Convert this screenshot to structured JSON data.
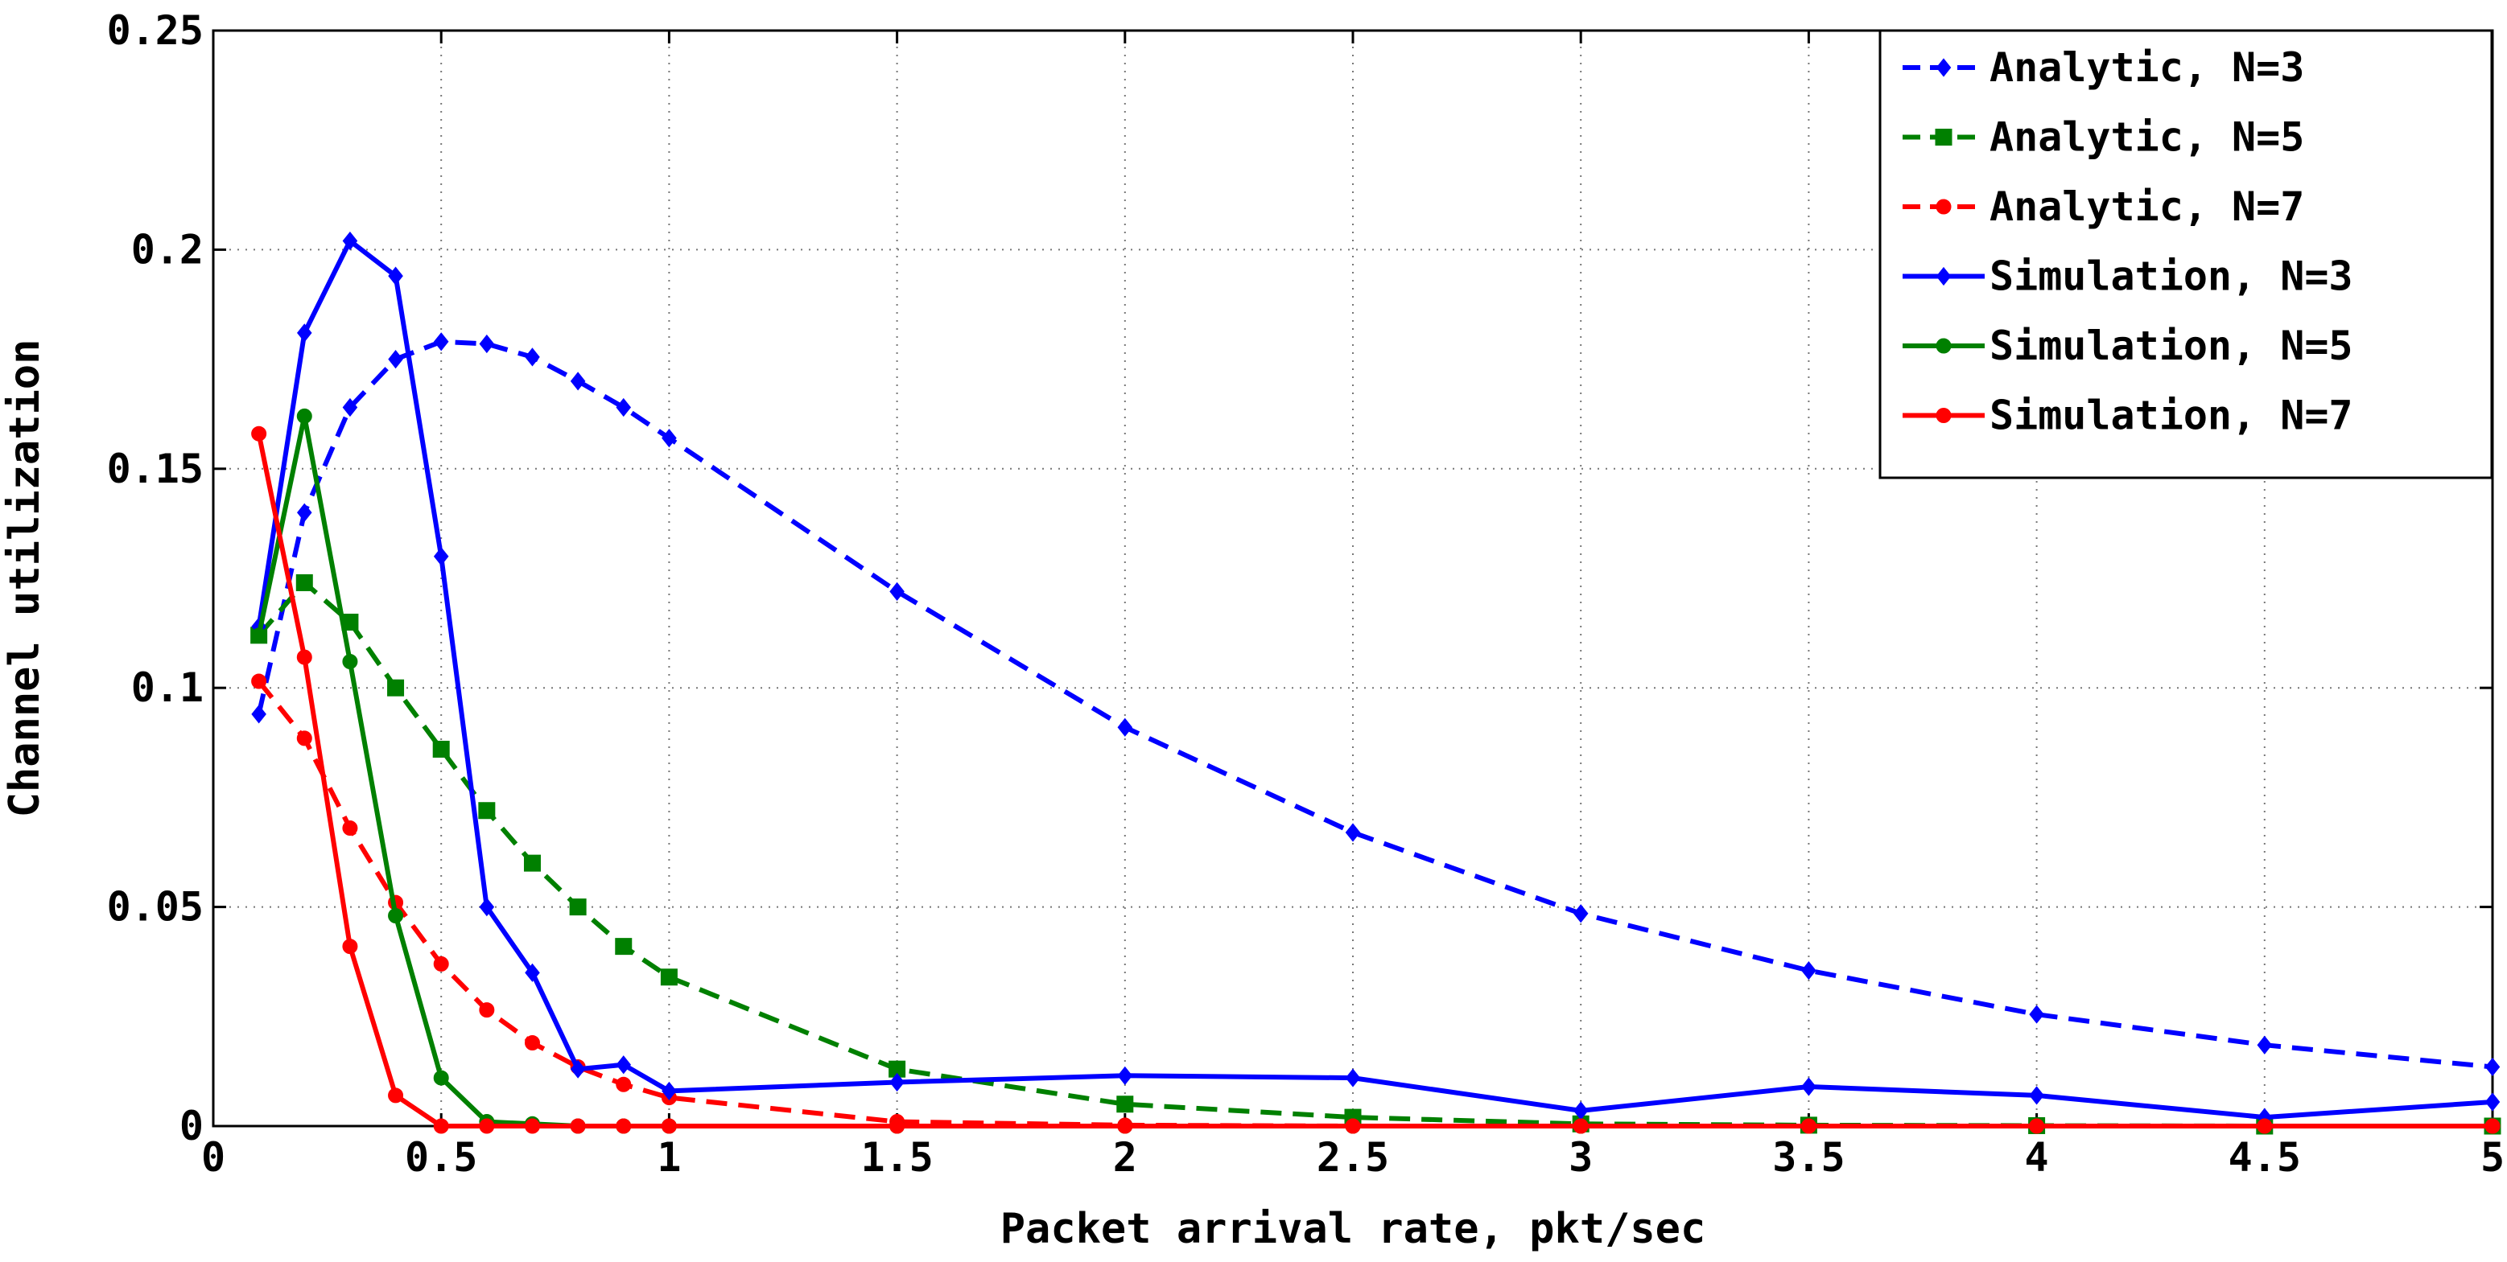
{
  "chart_data": {
    "type": "line",
    "title": "",
    "xlabel": "Packet arrival rate, pkt/sec",
    "ylabel": "Channel utilization",
    "xlim": [
      0,
      5
    ],
    "ylim": [
      0,
      0.25
    ],
    "xticks": [
      "0",
      "0.5",
      "1",
      "1.5",
      "2",
      "2.5",
      "3",
      "3.5",
      "4",
      "4.5",
      "5"
    ],
    "xtick_values": [
      0,
      0.5,
      1,
      1.5,
      2,
      2.5,
      3,
      3.5,
      4,
      4.5,
      5
    ],
    "yticks": [
      "0",
      "0.05",
      "0.1",
      "0.15",
      "0.2",
      "0.25"
    ],
    "ytick_values": [
      0,
      0.05,
      0.1,
      0.15,
      0.2,
      0.25
    ],
    "grid": true,
    "legend_position": "top-right",
    "series": [
      {
        "name": "Analytic, N=3",
        "color": "#0000ff",
        "style": "dashed",
        "marker": "diamond",
        "x": [
          0.1,
          0.2,
          0.3,
          0.4,
          0.5,
          0.6,
          0.7,
          0.8,
          0.9,
          1,
          1.5,
          2,
          2.5,
          3,
          3.5,
          4,
          4.5,
          5
        ],
        "y": [
          0.094,
          0.14,
          0.164,
          0.175,
          0.179,
          0.1785,
          0.1755,
          0.17,
          0.164,
          0.157,
          0.122,
          0.091,
          0.067,
          0.0485,
          0.0355,
          0.0255,
          0.0185,
          0.0135
        ]
      },
      {
        "name": "Analytic, N=5",
        "color": "#008000",
        "style": "dashed",
        "marker": "square",
        "x": [
          0.1,
          0.2,
          0.3,
          0.4,
          0.5,
          0.6,
          0.7,
          0.8,
          0.9,
          1,
          1.5,
          2,
          2.5,
          3,
          3.5,
          4,
          4.5,
          5
        ],
        "y": [
          0.112,
          0.124,
          0.115,
          0.1,
          0.086,
          0.072,
          0.06,
          0.05,
          0.041,
          0.034,
          0.013,
          0.005,
          0.002,
          0.0005,
          0.0002,
          0.0001,
          0.0,
          0.0
        ]
      },
      {
        "name": "Analytic, N=7",
        "color": "#ff0000",
        "style": "dashed",
        "marker": "circle",
        "x": [
          0.1,
          0.2,
          0.3,
          0.4,
          0.5,
          0.6,
          0.7,
          0.8,
          0.9,
          1,
          1.5,
          2,
          2.5,
          3,
          3.5,
          4,
          4.5,
          5
        ],
        "y": [
          0.1015,
          0.0885,
          0.068,
          0.051,
          0.037,
          0.0265,
          0.019,
          0.0135,
          0.0095,
          0.0065,
          0.001,
          0.0002,
          0.0,
          0.0,
          0.0,
          0.0,
          0.0,
          0.0
        ]
      },
      {
        "name": "Simulation, N=3",
        "color": "#0000ff",
        "style": "solid",
        "marker": "diamond",
        "x": [
          0.1,
          0.2,
          0.3,
          0.4,
          0.5,
          0.6,
          0.7,
          0.8,
          0.9,
          1,
          1.5,
          2,
          2.5,
          3,
          3.5,
          4,
          4.5,
          5
        ],
        "y": [
          0.114,
          0.181,
          0.202,
          0.194,
          0.13,
          0.05,
          0.035,
          0.013,
          0.014,
          0.008,
          0.01,
          0.0115,
          0.011,
          0.0035,
          0.009,
          0.007,
          0.002,
          0.0055
        ]
      },
      {
        "name": "Simulation, N=5",
        "color": "#008000",
        "style": "solid",
        "marker": "circle",
        "x": [
          0.1,
          0.2,
          0.3,
          0.4,
          0.5,
          0.6,
          0.7,
          0.8,
          0.9,
          1,
          1.5,
          2,
          2.5,
          3,
          3.5,
          4,
          4.5,
          5
        ],
        "y": [
          0.112,
          0.162,
          0.106,
          0.048,
          0.011,
          0.001,
          0.0005,
          0.0,
          0.0,
          0.0,
          0.0,
          0.0,
          0.0,
          0.0,
          0.0,
          0.0,
          0.0,
          0.0
        ]
      },
      {
        "name": "Simulation, N=7",
        "color": "#ff0000",
        "style": "solid",
        "marker": "circle",
        "x": [
          0.1,
          0.2,
          0.3,
          0.4,
          0.5,
          0.6,
          0.7,
          0.8,
          0.9,
          1,
          1.5,
          2,
          2.5,
          3,
          3.5,
          4,
          4.5,
          5
        ],
        "y": [
          0.158,
          0.107,
          0.041,
          0.007,
          0.0,
          0.0,
          0.0,
          0.0,
          0.0,
          0.0,
          0.0,
          0.0,
          0.0,
          0.0,
          0.0,
          0.0,
          0.0,
          0.0
        ]
      }
    ]
  }
}
